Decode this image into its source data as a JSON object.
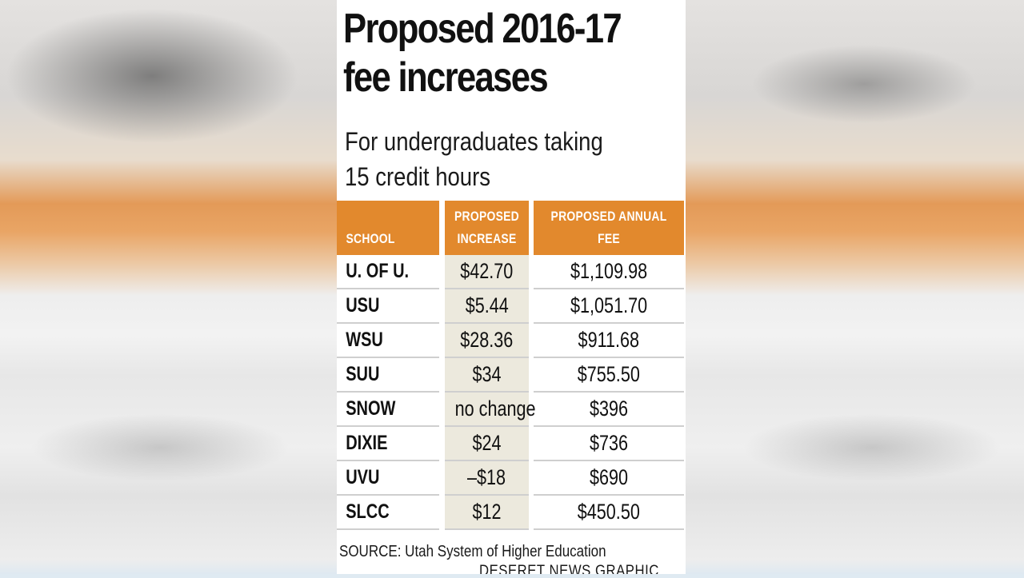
{
  "chart_data": {
    "type": "table",
    "title": "Proposed 2016-17 fee increases",
    "subtitle": "For undergraduates taking 15 credit hours",
    "columns": [
      "SCHOOL",
      "PROPOSED INCREASE",
      "PROPOSED ANNUAL FEE"
    ],
    "rows": [
      {
        "school": "U. OF U.",
        "increase": "$42.70",
        "annual_fee": "$1,109.98"
      },
      {
        "school": "USU",
        "increase": "$5.44",
        "annual_fee": "$1,051.70"
      },
      {
        "school": "WSU",
        "increase": "$28.36",
        "annual_fee": "$911.68"
      },
      {
        "school": "SUU",
        "increase": "$34",
        "annual_fee": "$755.50"
      },
      {
        "school": "SNOW",
        "increase": "no change",
        "annual_fee": "$396"
      },
      {
        "school": "DIXIE",
        "increase": "$24",
        "annual_fee": "$736"
      },
      {
        "school": "UVU",
        "increase": "–$18",
        "annual_fee": "$690"
      },
      {
        "school": "SLCC",
        "increase": "$12",
        "annual_fee": "$450.50"
      }
    ],
    "source": "SOURCE: Utah System of Higher Education",
    "credit": "DESERET NEWS GRAPHIC"
  },
  "headers": {
    "school": "SCHOOL",
    "increase_line1": "PROPOSED",
    "increase_line2": "INCREASE",
    "annual_line1": "PROPOSED ANNUAL",
    "annual_line2": "FEE"
  },
  "title_lines": [
    "Proposed 2016-17",
    "fee increases"
  ],
  "subtitle_lines": [
    "For undergraduates taking",
    "15 credit hours"
  ],
  "colors": {
    "header_bg": "#e2892d",
    "increase_column_bg": "#ece9dd",
    "row_divider": "#cfcfcf"
  }
}
